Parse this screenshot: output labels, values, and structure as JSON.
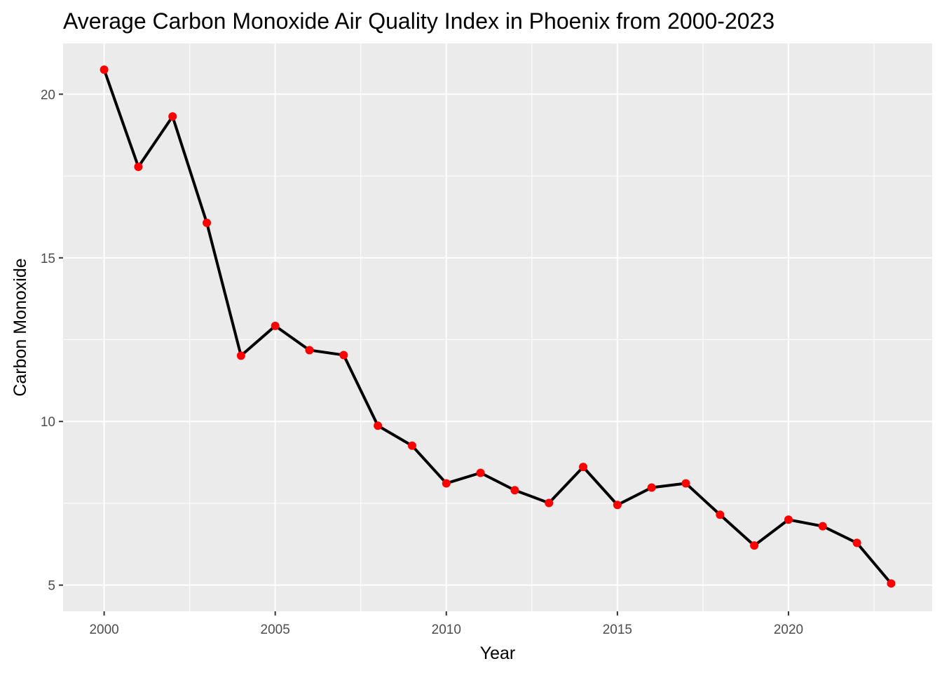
{
  "chart_data": {
    "type": "line",
    "title": "Average Carbon Monoxide Air Quality Index in Phoenix from 2000-2023",
    "xlabel": "Year",
    "ylabel": "Carbon Monoxide",
    "x": [
      2000,
      2001,
      2002,
      2003,
      2004,
      2005,
      2006,
      2007,
      2008,
      2009,
      2010,
      2011,
      2012,
      2013,
      2014,
      2015,
      2016,
      2017,
      2018,
      2019,
      2020,
      2021,
      2022,
      2023
    ],
    "series": [
      {
        "values": [
          20.75,
          17.78,
          19.32,
          16.07,
          12.01,
          12.92,
          12.18,
          12.03,
          9.87,
          9.26,
          8.11,
          8.43,
          7.9,
          7.51,
          8.61,
          7.45,
          7.98,
          8.11,
          7.15,
          6.21,
          7.0,
          6.8,
          6.29,
          5.05
        ],
        "line_color": "#000000",
        "point_color": "#ff0000"
      }
    ],
    "xlim": [
      1998.8,
      2024.2
    ],
    "ylim": [
      4.2,
      21.55
    ],
    "x_ticks": [
      2000,
      2005,
      2010,
      2015,
      2020
    ],
    "y_ticks": [
      5,
      10,
      15,
      20
    ],
    "grid": true,
    "panel_background": "#ebebeb",
    "grid_color": "#ffffff"
  }
}
